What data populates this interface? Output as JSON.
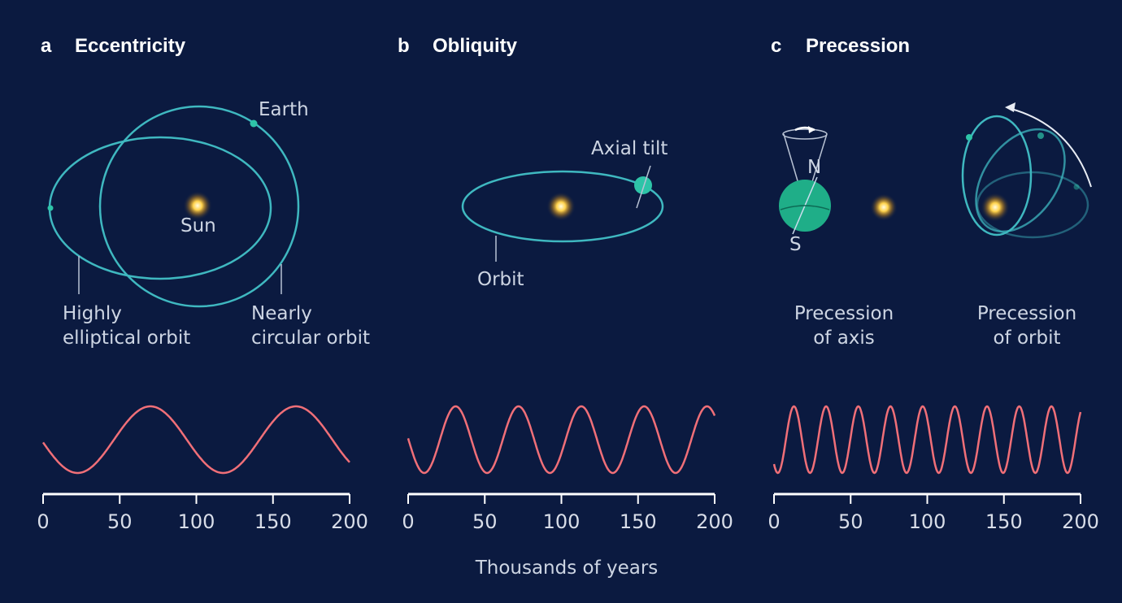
{
  "panels": [
    {
      "letter": "a",
      "title": "Eccentricity",
      "labels": [
        "Earth",
        "Sun"
      ],
      "captions": [
        [
          "Highly",
          "elliptical orbit"
        ],
        [
          "Nearly",
          "circular orbit"
        ]
      ],
      "period": 95,
      "xlim": [
        0,
        200
      ],
      "xticks": [
        0,
        50,
        100,
        150,
        200
      ]
    },
    {
      "letter": "b",
      "title": "Obliquity",
      "labels": [
        "Axial tilt",
        "Orbit"
      ],
      "period": 41,
      "xlim": [
        0,
        200
      ],
      "xticks": [
        0,
        50,
        100,
        150,
        200
      ]
    },
    {
      "letter": "c",
      "title": "Precession",
      "labels": [
        "N",
        "S"
      ],
      "captions": [
        [
          "Precession",
          "of axis"
        ],
        [
          "Precession",
          "of orbit"
        ]
      ],
      "period": 21,
      "xlim": [
        0,
        200
      ],
      "xticks": [
        0,
        50,
        100,
        150,
        200
      ]
    }
  ],
  "x_label": "Thousands of years"
}
